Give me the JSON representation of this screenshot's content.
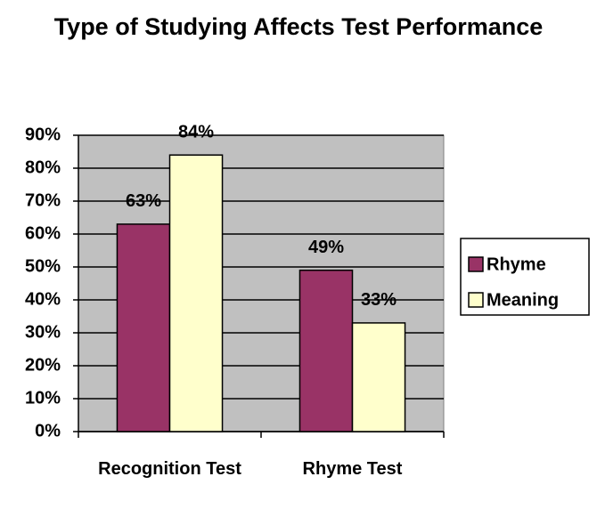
{
  "chart_data": {
    "type": "bar",
    "title": "Type of Studying Affects Test Performance",
    "categories": [
      "Recognition Test",
      "Rhyme Test"
    ],
    "series": [
      {
        "name": "Rhyme",
        "color": "#993366",
        "values": [
          63,
          49
        ],
        "value_labels": [
          "63%",
          "49%"
        ]
      },
      {
        "name": "Meaning",
        "color": "#ffffcc",
        "values": [
          84,
          33
        ],
        "value_labels": [
          "84%",
          "33%"
        ]
      }
    ],
    "ylim": [
      0,
      90
    ],
    "yticks": [
      {
        "value": 0,
        "label": "0%"
      },
      {
        "value": 10,
        "label": "10%"
      },
      {
        "value": 20,
        "label": "20%"
      },
      {
        "value": 30,
        "label": "30%"
      },
      {
        "value": 40,
        "label": "40%"
      },
      {
        "value": 50,
        "label": "50%"
      },
      {
        "value": 60,
        "label": "60%"
      },
      {
        "value": 70,
        "label": "70%"
      },
      {
        "value": 80,
        "label": "80%"
      },
      {
        "value": 90,
        "label": "90%"
      }
    ],
    "grid": true,
    "legend": "right"
  }
}
